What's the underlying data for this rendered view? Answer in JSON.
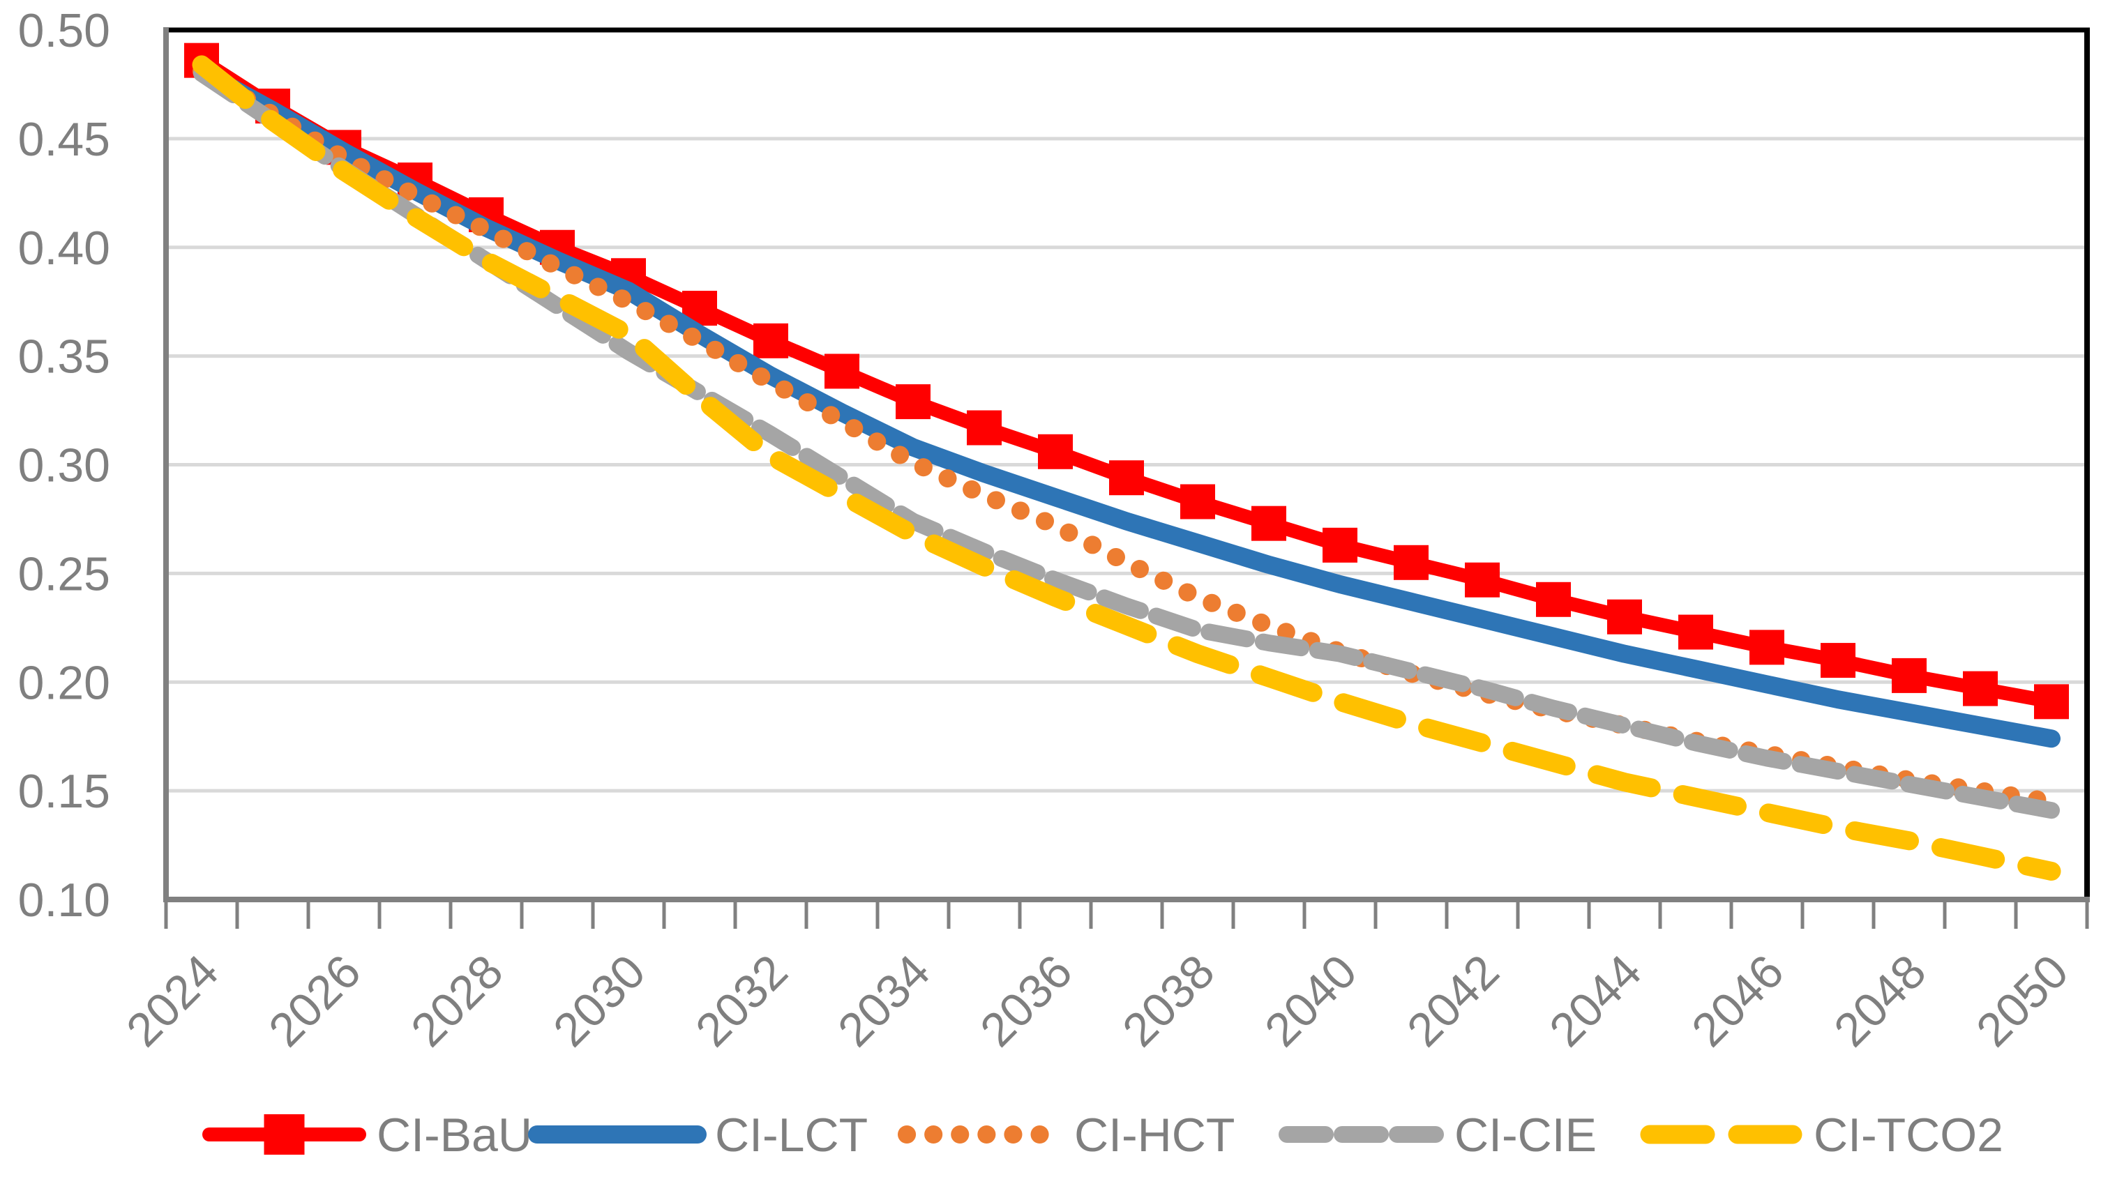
{
  "chart_data": {
    "type": "line",
    "title": "",
    "xlabel": "",
    "ylabel": "",
    "x": [
      2024,
      2025,
      2026,
      2027,
      2028,
      2029,
      2030,
      2031,
      2032,
      2033,
      2034,
      2035,
      2036,
      2037,
      2038,
      2039,
      2040,
      2041,
      2042,
      2043,
      2044,
      2045,
      2046,
      2047,
      2048,
      2049,
      2050
    ],
    "x_tick_labels": [
      "2024",
      "2026",
      "2028",
      "2030",
      "2032",
      "2034",
      "2036",
      "2038",
      "2040",
      "2042",
      "2044",
      "2046",
      "2048",
      "2050"
    ],
    "y_axis": {
      "min": 0.1,
      "max": 0.5,
      "step": 0.05,
      "tick_labels": [
        "0.10",
        "0.15",
        "0.20",
        "0.25",
        "0.30",
        "0.35",
        "0.40",
        "0.45",
        "0.50"
      ]
    },
    "grid": "horizontal",
    "legend_position": "bottom",
    "series": [
      {
        "name": "CI-BaU",
        "color": "#FF0000",
        "style": "solid",
        "marker": "square",
        "values": [
          0.486,
          0.465,
          0.446,
          0.431,
          0.415,
          0.4,
          0.387,
          0.372,
          0.357,
          0.343,
          0.329,
          0.317,
          0.306,
          0.294,
          0.283,
          0.273,
          0.263,
          0.255,
          0.247,
          0.238,
          0.23,
          0.223,
          0.216,
          0.21,
          0.203,
          0.197,
          0.191
        ]
      },
      {
        "name": "CI-LCT",
        "color": "#2E75B6",
        "style": "solid",
        "marker": "none",
        "values": [
          0.481,
          0.463,
          0.444,
          0.426,
          0.409,
          0.394,
          0.38,
          0.36,
          0.341,
          0.324,
          0.308,
          0.296,
          0.285,
          0.274,
          0.264,
          0.254,
          0.245,
          0.237,
          0.229,
          0.221,
          0.213,
          0.206,
          0.199,
          0.192,
          0.186,
          0.18,
          0.174
        ]
      },
      {
        "name": "CI-HCT",
        "color": "#ED7D31",
        "style": "dotted",
        "marker": "none",
        "values": [
          0.481,
          0.461,
          0.441,
          0.424,
          0.408,
          0.391,
          0.375,
          0.357,
          0.338,
          0.32,
          0.301,
          0.286,
          0.272,
          0.255,
          0.239,
          0.226,
          0.214,
          0.204,
          0.195,
          0.187,
          0.18,
          0.173,
          0.167,
          0.161,
          0.155,
          0.15,
          0.145
        ]
      },
      {
        "name": "CI-CIE",
        "color": "#A5A5A5",
        "style": "dashed",
        "marker": "none",
        "values": [
          0.48,
          0.458,
          0.436,
          0.415,
          0.394,
          0.373,
          0.352,
          0.333,
          0.314,
          0.294,
          0.274,
          0.26,
          0.247,
          0.235,
          0.224,
          0.218,
          0.213,
          0.205,
          0.197,
          0.188,
          0.18,
          0.172,
          0.165,
          0.159,
          0.153,
          0.147,
          0.141
        ]
      },
      {
        "name": "CI-TCO2",
        "color": "#FFC000",
        "style": "long-dash",
        "marker": "none",
        "values": [
          0.484,
          0.458,
          0.435,
          0.414,
          0.394,
          0.377,
          0.36,
          0.331,
          0.304,
          0.286,
          0.268,
          0.253,
          0.239,
          0.226,
          0.213,
          0.202,
          0.191,
          0.181,
          0.172,
          0.163,
          0.154,
          0.147,
          0.14,
          0.133,
          0.127,
          0.12,
          0.113
        ]
      }
    ],
    "style_colors": {
      "axis_line": "#808080",
      "gridline": "#D9D9D9",
      "plot_border": "#000000",
      "tick_label": "#7F7F7F",
      "background": "#FFFFFF"
    }
  }
}
